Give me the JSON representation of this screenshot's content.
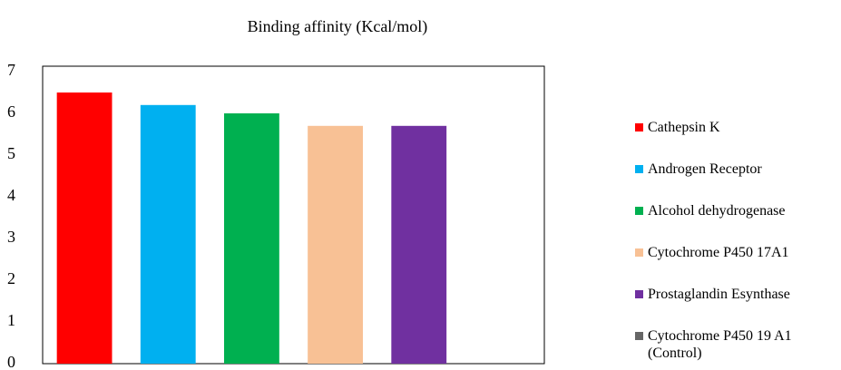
{
  "chart_data": {
    "type": "bar",
    "title": "Binding affinity (Kcal/mol)",
    "categories": [
      "Cathepsin K",
      "Androgen Receptor",
      "Alcohol dehydrogenase",
      "Cytochrome P450 17A1",
      "Prostaglandin Esynthase",
      "Cytochrome P450 19 A1 (Control)"
    ],
    "values": [
      6.5,
      6.2,
      6.0,
      5.7,
      5.7,
      null
    ],
    "colors": [
      "#ff0000",
      "#00b0f0",
      "#00b050",
      "#f8c195",
      "#7030a0",
      "#666666"
    ],
    "ylim": [
      0,
      7
    ],
    "yticks": [
      0,
      1,
      2,
      3,
      4,
      5,
      6,
      7
    ],
    "grid": false
  }
}
